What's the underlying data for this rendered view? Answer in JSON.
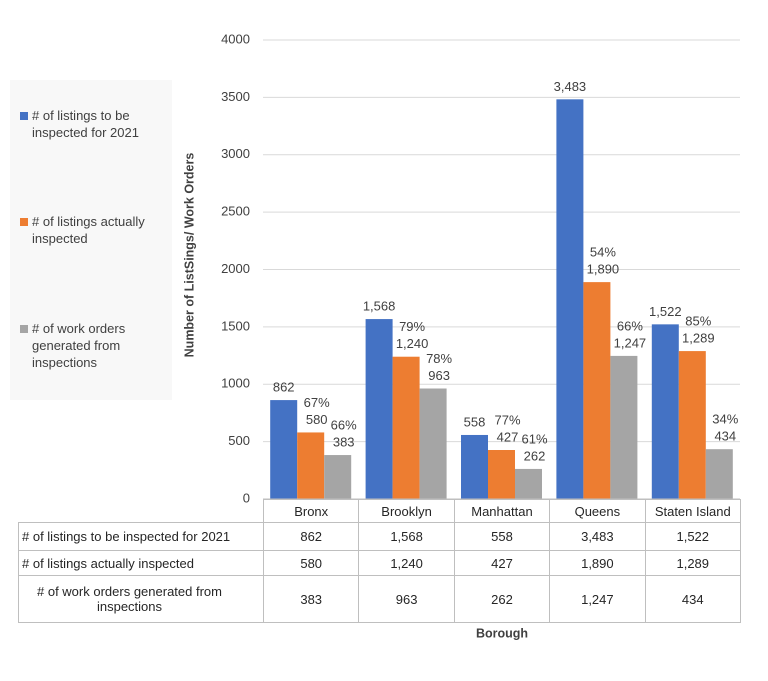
{
  "chart_data": {
    "type": "bar",
    "y_label": "Number of ListSings/ Work Orders",
    "x_label": "Borough",
    "categories": [
      "Bronx",
      "Brooklyn",
      "Manhattan",
      "Queens",
      "Staten Island"
    ],
    "ylim": [
      0,
      4000
    ],
    "yticks": [
      0,
      500,
      1000,
      1500,
      2000,
      2500,
      3000,
      3500,
      4000
    ],
    "grid": true,
    "legend": "left",
    "data_table": true,
    "series": [
      {
        "name": "# of listings to be inspected for 2021",
        "color": "#4472c4",
        "values": [
          862,
          1568,
          558,
          3483,
          1522
        ],
        "value_labels": [
          "862",
          "1,568",
          "558",
          "3,483",
          "1,522"
        ]
      },
      {
        "name": "# of listings actually inspected",
        "color": "#ed7d31",
        "values": [
          580,
          1240,
          427,
          1890,
          1289
        ],
        "value_labels": [
          "580",
          "1,240",
          "427",
          "1,890",
          "1,289"
        ],
        "percent_labels": [
          "67%",
          "79%",
          "77%",
          "54%",
          "85%"
        ]
      },
      {
        "name": "# of work orders generated from inspections",
        "color": "#a5a5a5",
        "values": [
          383,
          963,
          262,
          1247,
          434
        ],
        "value_labels": [
          "383",
          "963",
          "262",
          "1,247",
          "434"
        ],
        "percent_labels": [
          "66%",
          "78%",
          "61%",
          "66%",
          "34%"
        ]
      }
    ]
  }
}
